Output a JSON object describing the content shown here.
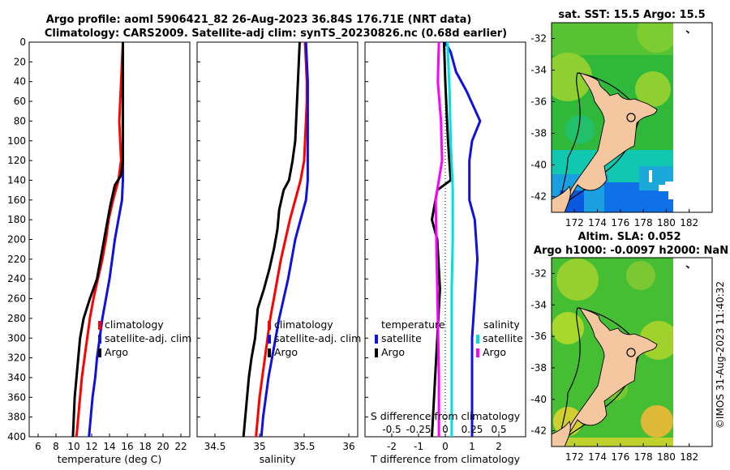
{
  "header": {
    "line1": "Argo profile: aoml 5906421_82 26-Aug-2023 36.84S 176.71E (NRT data)",
    "line2": "Climatology: CARS2009. Satellite-adj clim: synTS_20230826.nc (0.68d earlier)"
  },
  "colors": {
    "climatology": "#ff0000",
    "satellite": "#1010e0",
    "argo": "#000000",
    "sat_salinity": "#00e0e0",
    "argo_salinity": "#ff00ff",
    "land": "#f5c7a0"
  },
  "timestamp": "©IMOS 31-Aug-2023 11:40:32",
  "chart_data": [
    {
      "id": "temperature",
      "type": "line",
      "xlabel": "temperature (deg C)",
      "ylabel": "depth",
      "xlim": [
        5,
        23
      ],
      "ylim": [
        400,
        0
      ],
      "xticks": [
        "6",
        "8",
        "10",
        "12",
        "14",
        "16",
        "18",
        "20",
        "22"
      ],
      "xtick_values": [
        6,
        8,
        10,
        12,
        14,
        16,
        18,
        20,
        22
      ],
      "yticks": [
        "0",
        "20",
        "40",
        "60",
        "80",
        "100",
        "120",
        "140",
        "160",
        "180",
        "200",
        "220",
        "240",
        "260",
        "280",
        "300",
        "320",
        "340",
        "360",
        "380",
        "400"
      ],
      "ytick_values": [
        0,
        20,
        40,
        60,
        80,
        100,
        120,
        140,
        160,
        180,
        200,
        220,
        240,
        260,
        280,
        300,
        320,
        340,
        360,
        380,
        400
      ],
      "legend": [
        "climatology",
        "satellite-adj. clim",
        "Argo"
      ],
      "series": [
        {
          "name": "climatology",
          "color": "red",
          "points": [
            [
              15.5,
              0
            ],
            [
              15.4,
              20
            ],
            [
              15.3,
              40
            ],
            [
              15.2,
              60
            ],
            [
              15.1,
              80
            ],
            [
              15.2,
              100
            ],
            [
              15.3,
              120
            ],
            [
              15.0,
              140
            ],
            [
              14.4,
              160
            ],
            [
              13.9,
              180
            ],
            [
              13.6,
              200
            ],
            [
              13.2,
              220
            ],
            [
              12.7,
              240
            ],
            [
              12.2,
              260
            ],
            [
              11.8,
              280
            ],
            [
              11.5,
              300
            ],
            [
              11.2,
              320
            ],
            [
              10.9,
              340
            ],
            [
              10.7,
              360
            ],
            [
              10.5,
              380
            ],
            [
              10.3,
              400
            ]
          ]
        },
        {
          "name": "satellite-adj. clim",
          "color": "blue",
          "points": [
            [
              15.5,
              0
            ],
            [
              15.5,
              20
            ],
            [
              15.5,
              40
            ],
            [
              15.5,
              60
            ],
            [
              15.5,
              80
            ],
            [
              15.5,
              100
            ],
            [
              15.5,
              120
            ],
            [
              15.5,
              140
            ],
            [
              15.4,
              160
            ],
            [
              15.0,
              180
            ],
            [
              14.6,
              200
            ],
            [
              14.3,
              220
            ],
            [
              14.0,
              240
            ],
            [
              13.6,
              260
            ],
            [
              13.2,
              280
            ],
            [
              12.9,
              300
            ],
            [
              12.6,
              320
            ],
            [
              12.4,
              340
            ],
            [
              12.1,
              360
            ],
            [
              11.9,
              380
            ],
            [
              11.7,
              400
            ]
          ]
        },
        {
          "name": "Argo",
          "color": "black",
          "points": [
            [
              15.5,
              0
            ],
            [
              15.5,
              20
            ],
            [
              15.5,
              40
            ],
            [
              15.5,
              60
            ],
            [
              15.5,
              80
            ],
            [
              15.5,
              100
            ],
            [
              15.5,
              120
            ],
            [
              15.3,
              135
            ],
            [
              14.6,
              145
            ],
            [
              14.1,
              165
            ],
            [
              13.8,
              180
            ],
            [
              13.4,
              200
            ],
            [
              13.0,
              220
            ],
            [
              12.6,
              240
            ],
            [
              11.8,
              260
            ],
            [
              11.1,
              280
            ],
            [
              10.7,
              300
            ],
            [
              10.5,
              320
            ],
            [
              10.3,
              340
            ],
            [
              10.1,
              360
            ],
            [
              10.0,
              380
            ],
            [
              9.9,
              400
            ]
          ]
        }
      ]
    },
    {
      "id": "salinity",
      "type": "line",
      "xlabel": "salinity",
      "ylabel": "depth",
      "xlim": [
        34.3,
        36.1
      ],
      "ylim": [
        400,
        0
      ],
      "xticks": [
        "34.5",
        "35",
        "35.5",
        "36"
      ],
      "xtick_values": [
        34.5,
        35,
        35.5,
        36
      ],
      "legend": [
        "climatology",
        "satellite-adj. clim",
        "Argo"
      ],
      "series": [
        {
          "name": "climatology",
          "color": "red",
          "points": [
            [
              35.51,
              0
            ],
            [
              35.52,
              20
            ],
            [
              35.53,
              40
            ],
            [
              35.53,
              60
            ],
            [
              35.52,
              80
            ],
            [
              35.51,
              100
            ],
            [
              35.5,
              120
            ],
            [
              35.46,
              140
            ],
            [
              35.4,
              160
            ],
            [
              35.34,
              180
            ],
            [
              35.29,
              200
            ],
            [
              35.24,
              220
            ],
            [
              35.2,
              240
            ],
            [
              35.16,
              260
            ],
            [
              35.12,
              280
            ],
            [
              35.09,
              300
            ],
            [
              35.06,
              320
            ],
            [
              35.03,
              340
            ],
            [
              35.0,
              360
            ],
            [
              34.98,
              380
            ],
            [
              34.96,
              400
            ]
          ]
        },
        {
          "name": "satellite-adj. clim",
          "color": "blue",
          "points": [
            [
              35.52,
              0
            ],
            [
              35.53,
              20
            ],
            [
              35.54,
              40
            ],
            [
              35.54,
              60
            ],
            [
              35.54,
              80
            ],
            [
              35.54,
              100
            ],
            [
              35.54,
              120
            ],
            [
              35.54,
              140
            ],
            [
              35.52,
              160
            ],
            [
              35.46,
              180
            ],
            [
              35.4,
              200
            ],
            [
              35.36,
              220
            ],
            [
              35.32,
              240
            ],
            [
              35.27,
              260
            ],
            [
              35.22,
              280
            ],
            [
              35.18,
              300
            ],
            [
              35.14,
              320
            ],
            [
              35.1,
              340
            ],
            [
              35.07,
              360
            ],
            [
              35.04,
              380
            ],
            [
              35.02,
              400
            ]
          ]
        },
        {
          "name": "Argo",
          "color": "black",
          "points": [
            [
              35.45,
              0
            ],
            [
              35.44,
              20
            ],
            [
              35.43,
              40
            ],
            [
              35.42,
              60
            ],
            [
              35.41,
              80
            ],
            [
              35.4,
              100
            ],
            [
              35.37,
              120
            ],
            [
              35.33,
              140
            ],
            [
              35.27,
              150
            ],
            [
              35.22,
              170
            ],
            [
              35.2,
              190
            ],
            [
              35.16,
              210
            ],
            [
              35.11,
              230
            ],
            [
              35.05,
              250
            ],
            [
              34.98,
              270
            ],
            [
              34.95,
              300
            ],
            [
              34.91,
              320
            ],
            [
              34.88,
              340
            ],
            [
              34.86,
              360
            ],
            [
              34.84,
              380
            ],
            [
              34.82,
              400
            ]
          ]
        }
      ]
    },
    {
      "id": "difference",
      "type": "line",
      "xlabel": "T difference from climatology",
      "top_xlabel": "S difference from climatology",
      "xlim": [
        -3,
        3
      ],
      "ylim": [
        400,
        0
      ],
      "xticks": [
        "-2",
        "-1",
        "0",
        "1",
        "2"
      ],
      "xtick_values": [
        -2,
        -1,
        0,
        1,
        2
      ],
      "s_xticks": [
        "-0.5",
        "-0.25",
        "0",
        "0.25",
        "0.5"
      ],
      "legend_temperature_title": "temperature",
      "legend_salinity_title": "salinity",
      "legend_temperature": [
        "satellite",
        "Argo"
      ],
      "legend_salinity": [
        "satellite",
        "Argo"
      ],
      "series": [
        {
          "name": "T satellite",
          "color": "blue",
          "points": [
            [
              0.0,
              0
            ],
            [
              0.2,
              10
            ],
            [
              0.4,
              30
            ],
            [
              0.8,
              50
            ],
            [
              1.3,
              80
            ],
            [
              1.0,
              100
            ],
            [
              0.9,
              120
            ],
            [
              0.9,
              160
            ],
            [
              1.1,
              180
            ],
            [
              1.2,
              220
            ],
            [
              1.1,
              260
            ],
            [
              1.0,
              300
            ],
            [
              1.0,
              340
            ],
            [
              1.0,
              400
            ]
          ]
        },
        {
          "name": "T Argo",
          "color": "black",
          "points": [
            [
              -0.05,
              0
            ],
            [
              0.0,
              40
            ],
            [
              0.1,
              100
            ],
            [
              0.2,
              140
            ],
            [
              -0.3,
              150
            ],
            [
              -0.5,
              180
            ],
            [
              -0.3,
              200
            ],
            [
              -0.2,
              250
            ],
            [
              -0.3,
              300
            ],
            [
              -0.4,
              350
            ],
            [
              -0.5,
              400
            ]
          ]
        },
        {
          "name": "S satellite",
          "color": "cyan",
          "points": [
            [
              0.02,
              0
            ],
            [
              0.04,
              50
            ],
            [
              0.05,
              100
            ],
            [
              0.07,
              150
            ],
            [
              0.07,
              200
            ],
            [
              0.06,
              250
            ],
            [
              0.06,
              300
            ],
            [
              0.06,
              350
            ],
            [
              0.06,
              400
            ]
          ]
        },
        {
          "name": "S Argo",
          "color": "magenta",
          "points": [
            [
              -0.06,
              0
            ],
            [
              -0.07,
              40
            ],
            [
              -0.04,
              80
            ],
            [
              -0.03,
              120
            ],
            [
              -0.09,
              160
            ],
            [
              -0.08,
              220
            ],
            [
              -0.07,
              280
            ],
            [
              -0.06,
              340
            ],
            [
              -0.06,
              400
            ]
          ]
        }
      ]
    }
  ],
  "maps": [
    {
      "id": "sst-map",
      "title": "sat. SST: 15.5 Argo: 15.5",
      "lon_ticks": [
        "172",
        "174",
        "176",
        "178",
        "180",
        "182"
      ],
      "lat_ticks": [
        "-32",
        "-34",
        "-36",
        "-38",
        "-40",
        "-42"
      ],
      "lon_range": [
        170,
        184
      ],
      "lat_range": [
        -43,
        -31
      ]
    },
    {
      "id": "sla-map",
      "title1": "Altim. SLA: 0.052",
      "title2": "Argo h1000: -0.0097 h2000: NaN",
      "lon_ticks": [
        "172",
        "174",
        "176",
        "178",
        "180",
        "182"
      ],
      "lat_ticks": [
        "-32",
        "-34",
        "-36",
        "-38",
        "-40",
        "-42"
      ],
      "lon_range": [
        170,
        184
      ],
      "lat_range": [
        -43,
        -31
      ]
    }
  ]
}
